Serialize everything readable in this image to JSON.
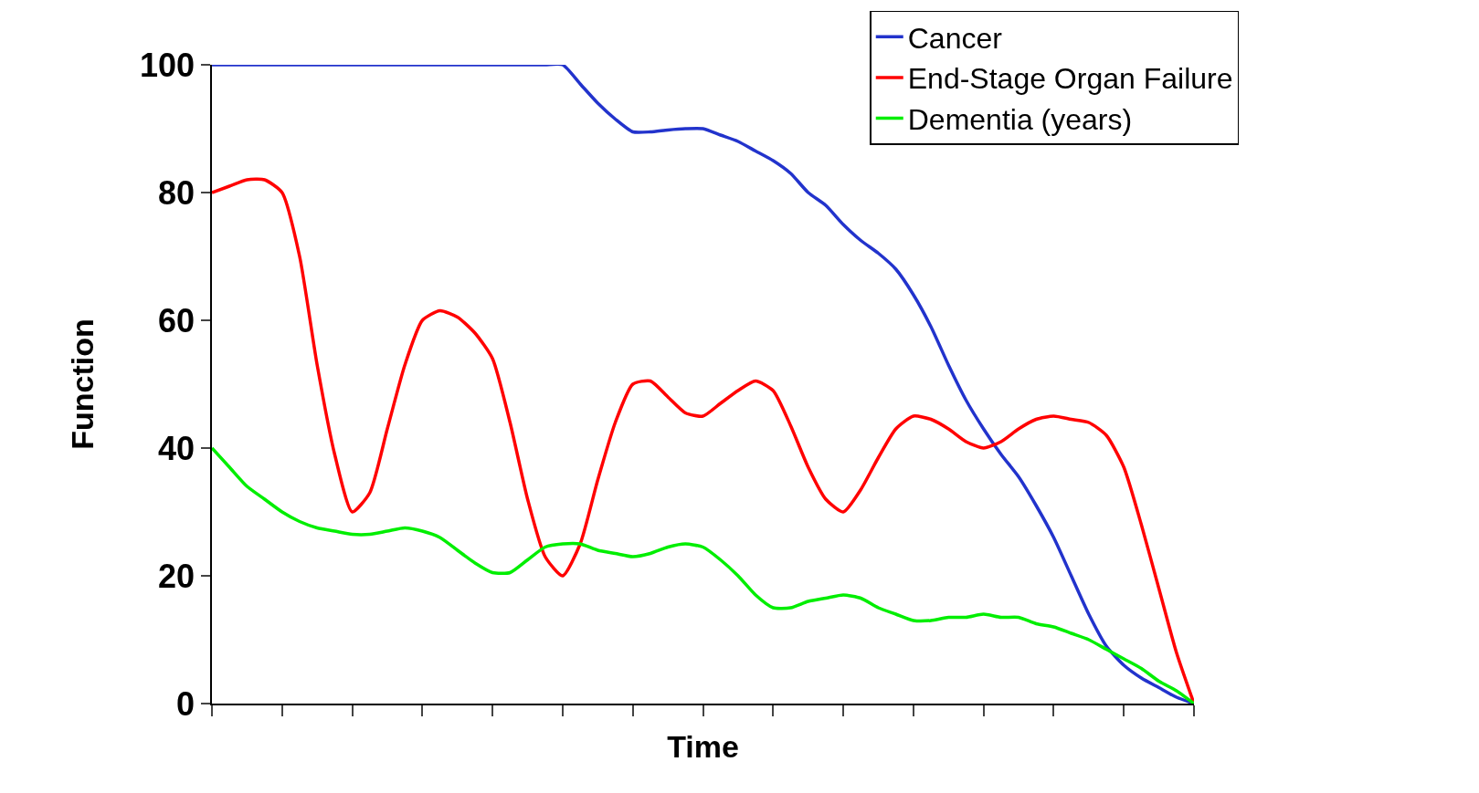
{
  "chart_data": {
    "type": "line",
    "xlabel": "Time",
    "ylabel": "Function",
    "categories": [
      null,
      null,
      null,
      null,
      null,
      null,
      null,
      null,
      null,
      null,
      null,
      null,
      null,
      null,
      null,
      null,
      null,
      null,
      null,
      null,
      null,
      null,
      null,
      null,
      null,
      null,
      null,
      null,
      null,
      null,
      null,
      null,
      null,
      null,
      null,
      null,
      null,
      null,
      null,
      null,
      null,
      null,
      null,
      null,
      null,
      null,
      null,
      null,
      null,
      null,
      null,
      null,
      null,
      null,
      null,
      null,
      null
    ],
    "series": [
      {
        "name": "Cancer",
        "color": "#2233cc",
        "values": [
          100,
          100,
          100,
          100,
          100,
          100,
          100,
          100,
          100,
          100,
          100,
          100,
          100,
          100,
          100,
          100,
          100,
          100,
          100,
          100,
          100,
          97,
          94,
          91.5,
          89.5,
          89.5,
          89.8,
          90,
          90,
          89,
          88,
          86.5,
          85,
          83,
          80,
          78,
          75,
          72.5,
          70.5,
          68,
          64,
          59,
          53,
          47.5,
          43,
          39,
          35.5,
          31,
          26,
          20,
          14,
          9,
          6,
          4,
          2.5,
          1,
          0
        ]
      },
      {
        "name": "End-Stage Organ Failure",
        "color": "#ff0000",
        "values": [
          80,
          81,
          82,
          82,
          80,
          70,
          53,
          39,
          30,
          33,
          43,
          53,
          60,
          61.5,
          60.5,
          58,
          54,
          44,
          32,
          23,
          20,
          25,
          35,
          44,
          50,
          50.5,
          48,
          45.5,
          45,
          47,
          49,
          50.5,
          49,
          43.5,
          37,
          32,
          30,
          33.5,
          38.5,
          43,
          45,
          44.5,
          43,
          41,
          40,
          41,
          43,
          44.5,
          45,
          44.5,
          44,
          42,
          37,
          28,
          18,
          8,
          0
        ]
      },
      {
        "name": "Dementia (years)",
        "color": "#00ee00",
        "values": [
          40,
          37,
          34,
          32,
          30,
          28.5,
          27.5,
          27,
          26.5,
          26.5,
          27,
          27.5,
          27,
          26,
          24,
          22,
          20.5,
          20.5,
          22.5,
          24.5,
          25,
          25,
          24,
          23.5,
          23,
          23.5,
          24.5,
          25,
          24.5,
          22.5,
          20,
          17,
          15,
          15,
          16,
          16.5,
          17,
          16.5,
          15,
          14,
          13,
          13,
          13.5,
          13.5,
          14,
          13.5,
          13.5,
          12.5,
          12,
          11,
          10,
          8.5,
          7,
          5.5,
          3.5,
          2,
          0
        ]
      }
    ],
    "ylim": [
      0,
      100
    ],
    "yticks": [
      0,
      20,
      40,
      60,
      80,
      100
    ],
    "grid": false,
    "legend": "top right",
    "marker": "none",
    "line_style": "solid"
  }
}
